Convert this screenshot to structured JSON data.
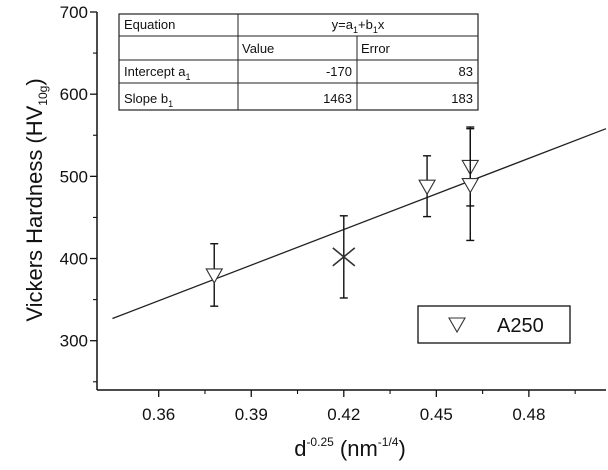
{
  "chart_data": {
    "type": "scatter",
    "xlabel": {
      "base": "d",
      "sup": "-0.25",
      "unit_open": " (nm",
      "unit_sup": "-1/4",
      "unit_close": ")"
    },
    "ylabel": {
      "main": "Vickers Hardness (HV",
      "sub": "10g",
      "close": ")"
    },
    "xlim": [
      0.34,
      0.505
    ],
    "ylim": [
      240,
      700
    ],
    "xticks": [
      0.36,
      0.39,
      0.42,
      0.45,
      0.48
    ],
    "xtick_labels": [
      "0.36",
      "0.39",
      "0.42",
      "0.45",
      "0.48"
    ],
    "yticks": [
      300,
      400,
      500,
      600,
      700
    ],
    "ytick_labels": [
      "300",
      "400",
      "500",
      "600",
      "700"
    ],
    "legend_position": "bottom-right",
    "series": [
      {
        "name": "A250",
        "marker": "triangle-down-open",
        "points": [
          {
            "x": 0.378,
            "y": 380,
            "err": 38
          },
          {
            "x": 0.447,
            "y": 488,
            "err": 37
          },
          {
            "x": 0.461,
            "y": 512,
            "err": 48
          },
          {
            "x": 0.461,
            "y": 490,
            "err": 68
          }
        ]
      },
      {
        "name": "",
        "marker": "x-cross",
        "points": [
          {
            "x": 0.42,
            "y": 402,
            "err": 50
          }
        ]
      }
    ],
    "fit_line": {
      "x": [
        0.345,
        0.505
      ],
      "y": [
        327,
        558
      ]
    },
    "fit_table": {
      "row_equation": {
        "label": "Equation",
        "value": "y=a1+b1x"
      },
      "header": {
        "value": "Value",
        "error": "Error"
      },
      "rows": [
        {
          "label": "Intercept a",
          "label_sub": "1",
          "value": "-170",
          "error": "83"
        },
        {
          "label": "Slope b",
          "label_sub": "1",
          "value": "1463",
          "error": "183"
        }
      ]
    }
  }
}
